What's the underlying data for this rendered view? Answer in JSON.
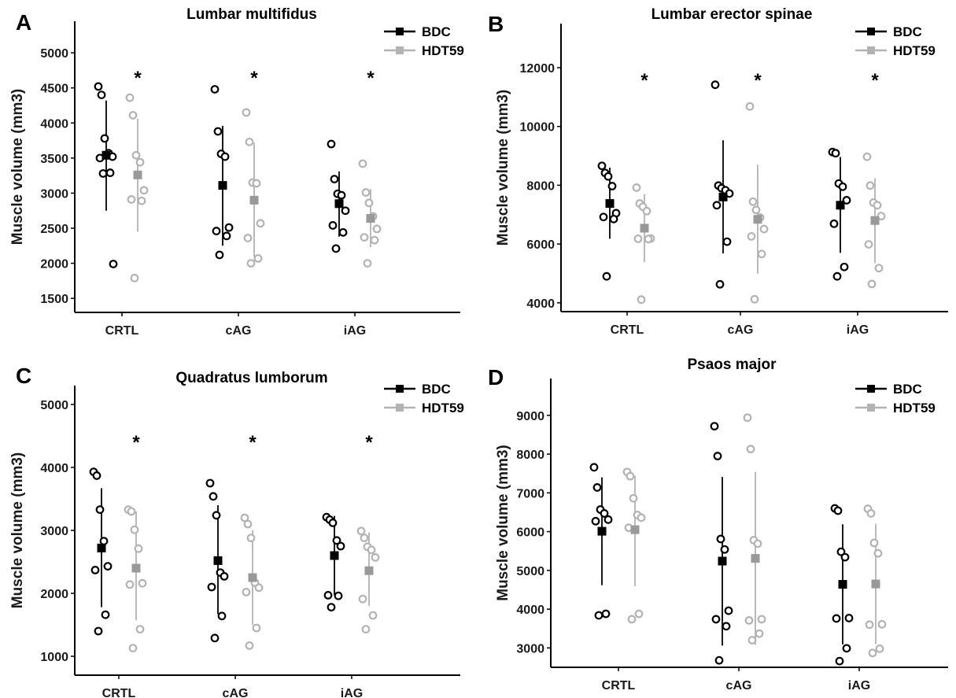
{
  "chart_data": [
    {
      "panel": "A",
      "type": "scatter",
      "title": "Lumbar multifidus",
      "ylabel": "Muscle volume (mm3)",
      "ylim": [
        1300,
        5450
      ],
      "yticks": [
        1500,
        2000,
        2500,
        3000,
        3500,
        4000,
        4500,
        5000
      ],
      "categories": [
        "CRTL",
        "cAG",
        "iAG"
      ],
      "legend": [
        "BDC",
        "HDT59"
      ],
      "legend_position": "top-right",
      "significance": [
        "*",
        "*",
        "*"
      ],
      "series": [
        {
          "name": "BDC",
          "color": "#000000",
          "mean": [
            3540,
            3110,
            2850
          ],
          "error": [
            [
              2750,
              4320
            ],
            [
              2250,
              3960
            ],
            [
              2380,
              3310
            ]
          ],
          "points": [
            [
              4520,
              4400,
              3780,
              3570,
              3520,
              3500,
              3290,
              3280,
              1990
            ],
            [
              4480,
              3880,
              3560,
              3520,
              2510,
              2460,
              2390,
              2120
            ],
            [
              3700,
              3200,
              2990,
              2970,
              2750,
              2540,
              2440,
              2210
            ]
          ]
        },
        {
          "name": "HDT59",
          "color": "#b3b3b3",
          "mean": [
            3260,
            2900,
            2640
          ],
          "error": [
            [
              2450,
              4060
            ],
            [
              2090,
              3720
            ],
            [
              2230,
              3060
            ]
          ],
          "points": [
            [
              4360,
              4110,
              3540,
              3440,
              3040,
              2910,
              2890,
              1790
            ],
            [
              4150,
              3730,
              3150,
              3140,
              2570,
              2360,
              2070,
              2000
            ],
            [
              3420,
              3010,
              2860,
              2670,
              2490,
              2370,
              2330,
              2000
            ]
          ]
        }
      ]
    },
    {
      "panel": "B",
      "type": "scatter",
      "title": "Lumbar erector spinae",
      "ylabel": "Muscle volume (mm3)",
      "ylim": [
        3700,
        13500
      ],
      "yticks": [
        4000,
        6000,
        8000,
        10000,
        12000
      ],
      "categories": [
        "CRTL",
        "cAG",
        "iAG"
      ],
      "legend": [
        "BDC",
        "HDT59"
      ],
      "legend_position": "top-right",
      "significance": [
        "*",
        "*",
        "*"
      ],
      "series": [
        {
          "name": "BDC",
          "color": "#000000",
          "mean": [
            7380,
            7600,
            7320
          ],
          "error": [
            [
              6180,
              8600
            ],
            [
              5680,
              9530
            ],
            [
              5700,
              8960
            ]
          ],
          "points": [
            [
              8660,
              8420,
              8300,
              7970,
              7050,
              6920,
              6850,
              4900
            ],
            [
              11420,
              7990,
              7900,
              7830,
              7720,
              7320,
              6080,
              4630
            ],
            [
              9130,
              9090,
              8060,
              7950,
              7490,
              6690,
              5220,
              4900
            ]
          ]
        },
        {
          "name": "HDT59",
          "color": "#b3b3b3",
          "mean": [
            6540,
            6840,
            6800
          ],
          "error": [
            [
              5380,
              7700
            ],
            [
              4990,
              8700
            ],
            [
              5350,
              8240
            ]
          ],
          "points": [
            [
              7920,
              7380,
              7270,
              7120,
              6190,
              6180,
              6170,
              4110
            ],
            [
              10680,
              7440,
              7160,
              6900,
              6510,
              6260,
              5660,
              4120
            ],
            [
              8970,
              7990,
              7410,
              7320,
              6950,
              5990,
              5180,
              4640
            ]
          ]
        }
      ]
    },
    {
      "panel": "C",
      "type": "scatter",
      "title": "Quadratus lumborum",
      "ylabel": "Muscle volume (mm3)",
      "ylim": [
        700,
        5300
      ],
      "yticks": [
        1000,
        2000,
        3000,
        4000,
        5000
      ],
      "categories": [
        "CRTL",
        "cAG",
        "iAG"
      ],
      "legend": [
        "BDC",
        "HDT59"
      ],
      "legend_position": "top-right",
      "significance": [
        "*",
        "*",
        "*"
      ],
      "series": [
        {
          "name": "BDC",
          "color": "#000000",
          "mean": [
            2720,
            2520,
            2600
          ],
          "error": [
            [
              1780,
              3670
            ],
            [
              1670,
              3400
            ],
            [
              1970,
              3230
            ]
          ],
          "points": [
            [
              3930,
              3870,
              3330,
              2830,
              2430,
              2370,
              1660,
              1400
            ],
            [
              3750,
              3540,
              3240,
              2330,
              2270,
              2100,
              1640,
              1290
            ],
            [
              3210,
              3170,
              3120,
              2840,
              2750,
              1970,
              1960,
              1780
            ]
          ]
        },
        {
          "name": "HDT59",
          "color": "#b3b3b3",
          "mean": [
            2400,
            2250,
            2360
          ],
          "error": [
            [
              1570,
              3300
            ],
            [
              1500,
              3000
            ],
            [
              1800,
              2970
            ]
          ],
          "points": [
            [
              3330,
              3300,
              3010,
              2710,
              2160,
              2140,
              1430,
              1130
            ],
            [
              3200,
              3100,
              2880,
              2170,
              2090,
              2020,
              1450,
              1170
            ],
            [
              2990,
              2880,
              2740,
              2690,
              2570,
              1910,
              1650,
              1430
            ]
          ]
        }
      ]
    },
    {
      "panel": "D",
      "type": "scatter",
      "title": "Psaos major",
      "ylabel": "Muscle volume (mm3)",
      "ylim": [
        2500,
        9950
      ],
      "yticks": [
        3000,
        4000,
        5000,
        6000,
        7000,
        8000,
        9000
      ],
      "categories": [
        "CRTL",
        "cAG",
        "iAG"
      ],
      "legend": [
        "BDC",
        "HDT59"
      ],
      "legend_position": "top-right",
      "significance": [],
      "series": [
        {
          "name": "BDC",
          "color": "#000000",
          "mean": [
            6010,
            5240,
            4640
          ],
          "error": [
            [
              4620,
              7400
            ],
            [
              3060,
              7410
            ],
            [
              3090,
              6190
            ]
          ],
          "points": [
            [
              7660,
              7140,
              6570,
              6470,
              6310,
              6270,
              3880,
              3840
            ],
            [
              8720,
              7950,
              5810,
              5540,
              3960,
              3740,
              3560,
              2680
            ],
            [
              6600,
              6540,
              5480,
              5340,
              3770,
              3760,
              2990,
              2660
            ]
          ]
        },
        {
          "name": "HDT59",
          "color": "#b3b3b3",
          "mean": [
            6050,
            5310,
            4650
          ],
          "error": [
            [
              4590,
              7440
            ],
            [
              3080,
              7540
            ],
            [
              3100,
              6200
            ]
          ],
          "points": [
            [
              7540,
              7430,
              6860,
              6430,
              6360,
              6100,
              3880,
              3740
            ],
            [
              8940,
              8130,
              5780,
              5690,
              3740,
              3710,
              3370,
              3200
            ],
            [
              6590,
              6470,
              5710,
              5440,
              3610,
              3600,
              2980,
              2870
            ]
          ]
        }
      ]
    }
  ]
}
